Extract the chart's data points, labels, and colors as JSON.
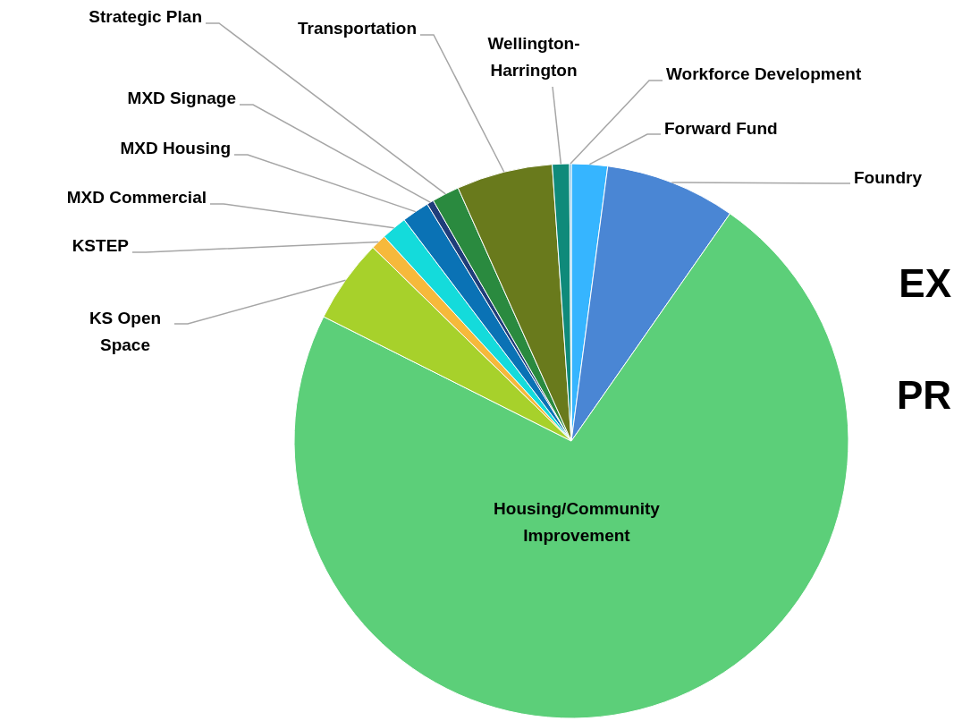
{
  "chart_data": {
    "type": "pie",
    "categories": [
      "Forward Fund",
      "Foundry",
      "Housing/Community Improvement",
      "KS Open Space",
      "KSTEP",
      "MXD Commercial",
      "MXD Housing",
      "MXD Signage",
      "Strategic Plan",
      "Transportation",
      "Wellington-Harrington",
      "Workforce Development"
    ],
    "values": [
      2.1,
      7.6,
      72.7,
      4.9,
      0.9,
      1.5,
      1.6,
      0.4,
      1.6,
      5.6,
      1.0,
      0.1
    ],
    "colors": [
      "#36b5ff",
      "#4a86d4",
      "#5ccf79",
      "#a7d12b",
      "#f6b93b",
      "#14dbdb",
      "#0a72b5",
      "#1f3d7a",
      "#2a8a3f",
      "#697a1c",
      "#0f8a7a",
      "#3ea0d8"
    ],
    "annotations": [
      "EX",
      "PR"
    ]
  }
}
